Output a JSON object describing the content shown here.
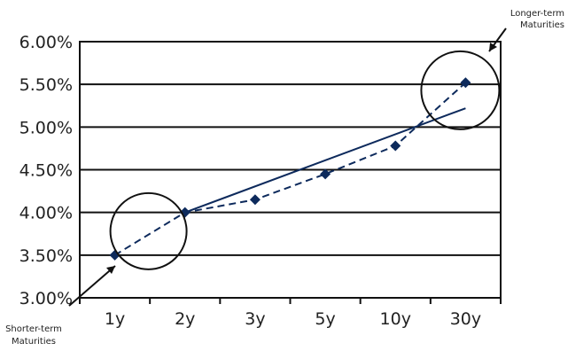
{
  "chart_data": {
    "type": "line",
    "title": "",
    "xlabel": "",
    "ylabel": "",
    "categories": [
      "1y",
      "2y",
      "3y",
      "5y",
      "10y",
      "30y"
    ],
    "ylim": [
      0.03,
      0.06
    ],
    "y_ticks": [
      "3.00%",
      "3.50%",
      "4.00%",
      "4.50%",
      "5.00%",
      "5.50%",
      "6.00%"
    ],
    "y_tick_values": [
      0.03,
      0.035,
      0.04,
      0.045,
      0.05,
      0.055,
      0.06
    ],
    "grid": true,
    "series": [
      {
        "values": [
          0.035,
          0.04,
          0.0415,
          0.0445,
          0.0478,
          0.0552
        ],
        "line_style": "dashed",
        "marker": "diamond",
        "color": "#0d2a5c"
      },
      {
        "from_category": "2y",
        "from_value": 0.04,
        "to_category": "30y",
        "to_value": 0.0522,
        "line_style": "solid",
        "color": "#0d2a5c"
      }
    ],
    "annotations": [
      {
        "text_lines": [
          "Longer-term",
          "Maturities"
        ],
        "target_category": "30y",
        "target_value": 0.0543,
        "placement": "top-right"
      },
      {
        "text_lines": [
          "Shorter-term",
          "Maturities"
        ],
        "target_category": "1y",
        "target_value": 0.0378,
        "placement": "bottom-left"
      }
    ]
  }
}
